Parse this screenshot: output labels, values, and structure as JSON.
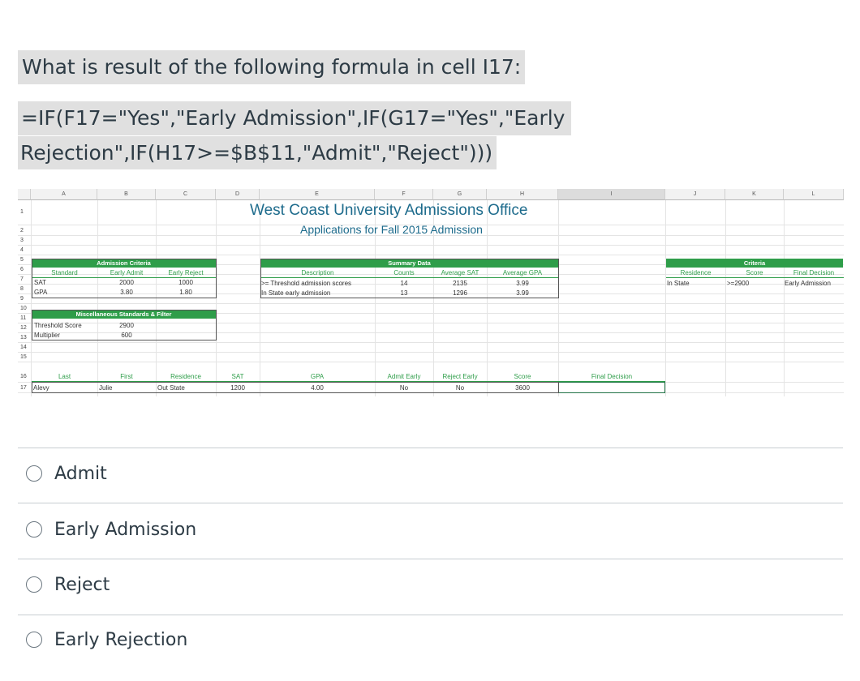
{
  "question": {
    "line1": "What is result of the following formula in cell I17:",
    "line2": "=IF(F17=\"Yes\",\"Early Admission\",IF(G17=\"Yes\",\"Early",
    "line3": "Rejection\",IF(H17>=$B$11,\"Admit\",\"Reject\")))"
  },
  "sheet": {
    "columns": [
      "A",
      "B",
      "C",
      "D",
      "E",
      "F",
      "G",
      "H",
      "I",
      "J",
      "K",
      "L"
    ],
    "rows": [
      "1",
      "2",
      "3",
      "4",
      "5",
      "6",
      "7",
      "8",
      "9",
      "10",
      "11",
      "12",
      "13",
      "14",
      "15",
      "16",
      "17"
    ],
    "title": "West Coast University Admissions Office",
    "subtitle": "Applications for Fall 2015 Admission",
    "admission_criteria": {
      "header": "Admission Criteria",
      "standard": "Standard",
      "early_admit": "Early Admit",
      "early_reject": "Early Reject",
      "rows": [
        {
          "label": "SAT",
          "admit": "2000",
          "reject": "1000"
        },
        {
          "label": "GPA",
          "admit": "3.80",
          "reject": "1.80"
        }
      ]
    },
    "misc": {
      "header": "Miscellaneous Standards & Filter",
      "rows": [
        {
          "label": "Threshold Score",
          "value": "2900"
        },
        {
          "label": "Multiplier",
          "value": "600"
        }
      ]
    },
    "summary": {
      "header": "Summary Data",
      "description": "Description",
      "counts": "Counts",
      "avg_sat": "Average SAT",
      "avg_gpa": "Average GPA",
      "rows": [
        {
          "desc": ">= Threshold admission scores",
          "count": "14",
          "sat": "2135",
          "gpa": "3.99"
        },
        {
          "desc": "In State early admission",
          "count": "13",
          "sat": "1296",
          "gpa": "3.99"
        }
      ]
    },
    "criteria": {
      "header": "Criteria",
      "residence": "Residence",
      "score": "Score",
      "final": "Final Decision",
      "res_val": "In State",
      "score_val": ">=2900",
      "final_val": "Early Admission"
    },
    "record_headers": {
      "last": "Last",
      "first": "First",
      "residence": "Residence",
      "sat": "SAT",
      "gpa": "GPA",
      "admit_early": "Admit Early",
      "reject_early": "Reject Early",
      "score": "Score",
      "final": "Final Decision"
    },
    "record": {
      "last": "Alevy",
      "first": "Julie",
      "residence": "Out State",
      "sat": "1200",
      "gpa": "4.00",
      "admit_early": "No",
      "reject_early": "No",
      "score": "3600",
      "final": ""
    }
  },
  "options": [
    {
      "label": "Admit"
    },
    {
      "label": "Early Admission"
    },
    {
      "label": "Reject"
    },
    {
      "label": "Early Rejection"
    }
  ]
}
